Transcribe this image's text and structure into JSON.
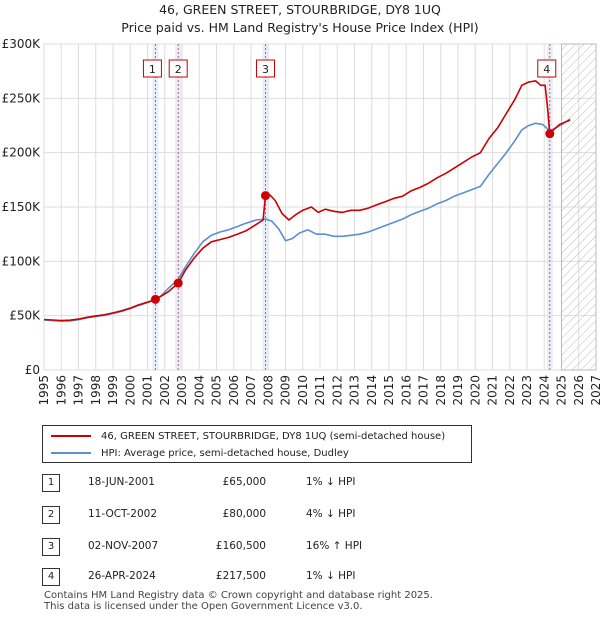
{
  "chart_data": {
    "type": "line",
    "title": "46, GREEN STREET, STOURBRIDGE, DY8 1UQ",
    "subtitle": "Price paid vs. HM Land Registry's House Price Index (HPI)",
    "xlim": [
      1995,
      2027
    ],
    "ylim": [
      0,
      300000
    ],
    "x_ticks": [
      "1995",
      "1996",
      "1997",
      "1998",
      "1999",
      "2000",
      "2001",
      "2002",
      "2003",
      "2004",
      "2005",
      "2006",
      "2007",
      "2008",
      "2009",
      "2010",
      "2011",
      "2012",
      "2013",
      "2014",
      "2015",
      "2016",
      "2017",
      "2018",
      "2019",
      "2020",
      "2021",
      "2022",
      "2023",
      "2024",
      "2025",
      "2026",
      "2027"
    ],
    "y_ticks": [
      {
        "value": 0,
        "label": "£0"
      },
      {
        "value": 50000,
        "label": "£50K"
      },
      {
        "value": 100000,
        "label": "£100K"
      },
      {
        "value": 150000,
        "label": "£150K"
      },
      {
        "value": 200000,
        "label": "£200K"
      },
      {
        "value": 250000,
        "label": "£250K"
      },
      {
        "value": 300000,
        "label": "£300K"
      }
    ],
    "forecast_start": 2025,
    "series": [
      {
        "name": "46, GREEN STREET, STOURBRIDGE, DY8 1UQ (semi-detached house)",
        "color": "#cc0000",
        "points": [
          [
            1995,
            46500
          ],
          [
            1995.5,
            46000
          ],
          [
            1996,
            45500
          ],
          [
            1996.5,
            45800
          ],
          [
            1997,
            46800
          ],
          [
            1997.5,
            48500
          ],
          [
            1998,
            49800
          ],
          [
            1998.5,
            50800
          ],
          [
            1999,
            52500
          ],
          [
            1999.5,
            54500
          ],
          [
            2000,
            57000
          ],
          [
            2000.5,
            60000
          ],
          [
            2001,
            62500
          ],
          [
            2001.46,
            65000
          ],
          [
            2001.8,
            68000
          ],
          [
            2002.2,
            72000
          ],
          [
            2002.78,
            80000
          ],
          [
            2003.2,
            92000
          ],
          [
            2003.7,
            103000
          ],
          [
            2004.2,
            112000
          ],
          [
            2004.7,
            118000
          ],
          [
            2005.2,
            120000
          ],
          [
            2005.7,
            122000
          ],
          [
            2006.2,
            125000
          ],
          [
            2006.7,
            128000
          ],
          [
            2007.3,
            134000
          ],
          [
            2007.7,
            138000
          ],
          [
            2007.84,
            160500
          ],
          [
            2008.1,
            161000
          ],
          [
            2008.4,
            156000
          ],
          [
            2008.8,
            144000
          ],
          [
            2009.2,
            138000
          ],
          [
            2009.6,
            143000
          ],
          [
            2010,
            147000
          ],
          [
            2010.5,
            150000
          ],
          [
            2010.9,
            145000
          ],
          [
            2011.3,
            148000
          ],
          [
            2011.8,
            146000
          ],
          [
            2012.3,
            145000
          ],
          [
            2012.8,
            147000
          ],
          [
            2013.3,
            147000
          ],
          [
            2013.8,
            149000
          ],
          [
            2014.3,
            152000
          ],
          [
            2014.8,
            155000
          ],
          [
            2015.3,
            158000
          ],
          [
            2015.8,
            160000
          ],
          [
            2016.3,
            165000
          ],
          [
            2016.8,
            168000
          ],
          [
            2017.3,
            172000
          ],
          [
            2017.8,
            177000
          ],
          [
            2018.3,
            181000
          ],
          [
            2018.8,
            186000
          ],
          [
            2019.3,
            191000
          ],
          [
            2019.8,
            196000
          ],
          [
            2020.3,
            200000
          ],
          [
            2020.8,
            213000
          ],
          [
            2021.3,
            223000
          ],
          [
            2021.8,
            236000
          ],
          [
            2022.3,
            249000
          ],
          [
            2022.7,
            262000
          ],
          [
            2023.1,
            265000
          ],
          [
            2023.5,
            266000
          ],
          [
            2023.8,
            262000
          ],
          [
            2024.05,
            262000
          ],
          [
            2024.2,
            240000
          ],
          [
            2024.32,
            217500
          ],
          [
            2024.6,
            222000
          ],
          [
            2024.9,
            226000
          ],
          [
            2025.2,
            228000
          ],
          [
            2025.5,
            230000
          ]
        ]
      },
      {
        "name": "HPI: Average price, semi-detached house, Dudley",
        "color": "#5b8fd0",
        "points": [
          [
            1995,
            46000
          ],
          [
            1995.5,
            45500
          ],
          [
            1996,
            45000
          ],
          [
            1996.5,
            45300
          ],
          [
            1997,
            46300
          ],
          [
            1997.5,
            48000
          ],
          [
            1998,
            49200
          ],
          [
            1998.5,
            50300
          ],
          [
            1999,
            52000
          ],
          [
            1999.5,
            54000
          ],
          [
            2000,
            56500
          ],
          [
            2000.5,
            59500
          ],
          [
            2001,
            62000
          ],
          [
            2001.46,
            64500
          ],
          [
            2001.8,
            68500
          ],
          [
            2002.2,
            75000
          ],
          [
            2002.78,
            83500
          ],
          [
            2003.2,
            95000
          ],
          [
            2003.7,
            107000
          ],
          [
            2004.2,
            118000
          ],
          [
            2004.7,
            124000
          ],
          [
            2005.2,
            127000
          ],
          [
            2005.7,
            129000
          ],
          [
            2006.2,
            132000
          ],
          [
            2006.7,
            135000
          ],
          [
            2007.3,
            138000
          ],
          [
            2007.84,
            139000
          ],
          [
            2008.2,
            137000
          ],
          [
            2008.6,
            130000
          ],
          [
            2009,
            119000
          ],
          [
            2009.4,
            121000
          ],
          [
            2009.8,
            126000
          ],
          [
            2010.3,
            129000
          ],
          [
            2010.8,
            125000
          ],
          [
            2011.3,
            125000
          ],
          [
            2011.8,
            123000
          ],
          [
            2012.3,
            123000
          ],
          [
            2012.8,
            124000
          ],
          [
            2013.3,
            125000
          ],
          [
            2013.8,
            127000
          ],
          [
            2014.3,
            130000
          ],
          [
            2014.8,
            133000
          ],
          [
            2015.3,
            136000
          ],
          [
            2015.8,
            139000
          ],
          [
            2016.3,
            143000
          ],
          [
            2016.8,
            146000
          ],
          [
            2017.3,
            149000
          ],
          [
            2017.8,
            153000
          ],
          [
            2018.3,
            156000
          ],
          [
            2018.8,
            160000
          ],
          [
            2019.3,
            163000
          ],
          [
            2019.8,
            166000
          ],
          [
            2020.3,
            169000
          ],
          [
            2020.8,
            180000
          ],
          [
            2021.3,
            190000
          ],
          [
            2021.8,
            200000
          ],
          [
            2022.3,
            211000
          ],
          [
            2022.7,
            221000
          ],
          [
            2023.1,
            225000
          ],
          [
            2023.5,
            227000
          ],
          [
            2023.9,
            226000
          ],
          [
            2024.32,
            220000
          ],
          [
            2024.7,
            223000
          ],
          [
            2025.0,
            226000
          ],
          [
            2025.3,
            229000
          ],
          [
            2025.5,
            231000
          ]
        ]
      }
    ],
    "transactions": [
      {
        "n": "1",
        "x": 2001.46,
        "y": 65000,
        "date": "18-JUN-2001",
        "price": "£65,000",
        "hpi": "1% ↓ HPI"
      },
      {
        "n": "2",
        "x": 2002.78,
        "y": 80000,
        "date": "11-OCT-2002",
        "price": "£80,000",
        "hpi": "4% ↓ HPI"
      },
      {
        "n": "3",
        "x": 2007.84,
        "y": 160500,
        "date": "02-NOV-2007",
        "price": "£160,500",
        "hpi": "16% ↑ HPI"
      },
      {
        "n": "4",
        "x": 2024.32,
        "y": 217500,
        "date": "26-APR-2024",
        "price": "£217,500",
        "hpi": "1% ↓ HPI"
      }
    ]
  },
  "footer_line1": "Contains HM Land Registry data © Crown copyright and database right 2025.",
  "footer_line2": "This data is licensed under the Open Government Licence v3.0."
}
